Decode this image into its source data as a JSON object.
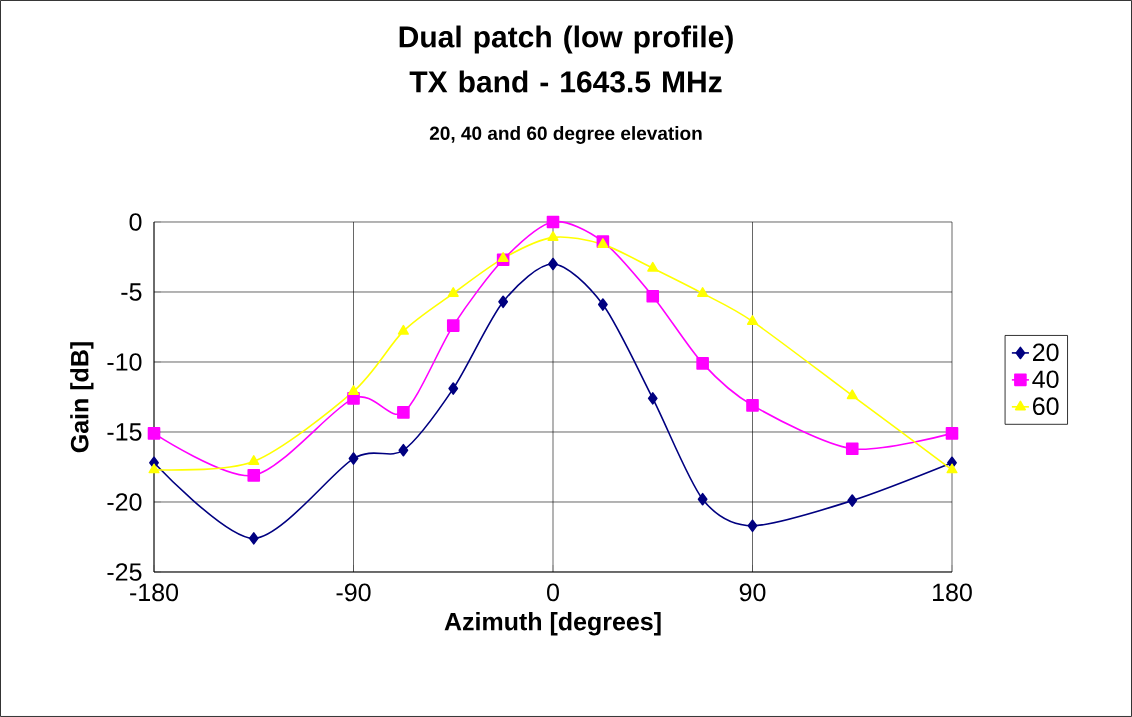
{
  "chart_data": {
    "type": "line",
    "title": "Dual patch (low profile) TX band - 1643.5 MHz",
    "subtitle": "20, 40 and 60 degree elevation",
    "xlabel": "Azimuth [degrees]",
    "ylabel": "Gain [dB]",
    "x": [
      -180,
      -135,
      -90,
      -67.5,
      -45,
      -22.5,
      0,
      22.5,
      45,
      67.5,
      90,
      135,
      180
    ],
    "series": [
      {
        "name": "20",
        "color": "#000080",
        "marker": "diamond",
        "values": [
          -17.2,
          -22.6,
          -16.9,
          -16.3,
          -11.9,
          -5.7,
          -3.0,
          -5.9,
          -12.6,
          -19.8,
          -21.7,
          -19.9,
          -17.2
        ]
      },
      {
        "name": "40",
        "color": "#ff00ff",
        "marker": "square",
        "values": [
          -15.1,
          -18.1,
          -12.6,
          -13.6,
          -7.4,
          -2.7,
          0,
          -1.4,
          -5.3,
          -10.1,
          -13.1,
          -16.2,
          -15.1
        ]
      },
      {
        "name": "60",
        "color": "#ffff00",
        "marker": "triangle",
        "values": [
          -17.7,
          -17.1,
          -12.1,
          -7.8,
          -5.1,
          -2.6,
          -1.1,
          -1.6,
          -3.3,
          -5.1,
          -7.1,
          -12.4,
          -17.7
        ]
      }
    ],
    "xlim": [
      -180,
      180
    ],
    "ylim": [
      -25,
      0
    ],
    "xticks": [
      -180,
      -90,
      0,
      90,
      180
    ],
    "yticks": [
      -25,
      -20,
      -15,
      -10,
      -5,
      0
    ],
    "grid": true,
    "legend": "right",
    "line_style": "solid"
  }
}
